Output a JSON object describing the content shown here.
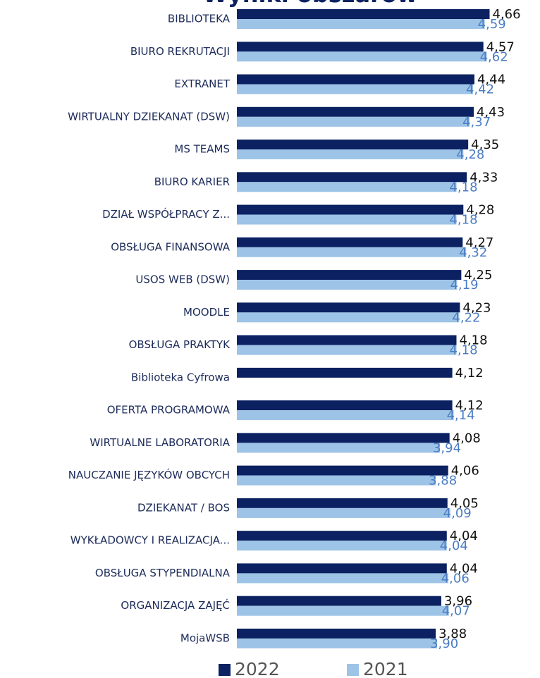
{
  "chart_data": {
    "type": "bar",
    "orientation": "horizontal",
    "title": "Wyniki obszarów",
    "categories": [
      "BIBLIOTEKA",
      "BIURO REKRUTACJI",
      "EXTRANET",
      "WIRTUALNY DZIEKANAT (DSW)",
      "MS TEAMS",
      "BIURO KARIER",
      "DZIAŁ WSPÓŁPRACY Z...",
      "OBSŁUGA FINANSOWA",
      "USOS WEB (DSW)",
      "MOODLE",
      "OBSŁUGA PRAKTYK",
      "Biblioteka Cyfrowa",
      "OFERTA PROGRAMOWA",
      "WIRTUALNE LABORATORIA",
      "NAUCZANIE JĘZYKÓW OBCYCH",
      "DZIEKANAT / BOS",
      "WYKŁADOWCY I REALIZACJA...",
      "OBSŁUGA STYPENDIALNA",
      "ORGANIZACJA ZAJĘĆ",
      "MojaWSB"
    ],
    "series": [
      {
        "name": "2022",
        "color": "#0b2161",
        "label_color": "#111111",
        "values": [
          4.66,
          4.57,
          4.44,
          4.43,
          4.35,
          4.33,
          4.28,
          4.27,
          4.25,
          4.23,
          4.18,
          4.12,
          4.12,
          4.08,
          4.06,
          4.05,
          4.04,
          4.04,
          3.96,
          3.88
        ],
        "value_labels": [
          "4,66",
          "4,57",
          "4,44",
          "4,43",
          "4,35",
          "4,33",
          "4,28",
          "4,27",
          "4,25",
          "4,23",
          "4,18",
          "4,12",
          "4,12",
          "4,08",
          "4,06",
          "4,05",
          "4,04",
          "4,04",
          "3,96",
          "3,88"
        ]
      },
      {
        "name": "2021",
        "color": "#9dc3e6",
        "label_color": "#4a7cc4",
        "values": [
          4.59,
          4.62,
          4.42,
          4.37,
          4.28,
          4.18,
          4.18,
          4.32,
          4.19,
          4.22,
          4.18,
          null,
          4.14,
          3.94,
          3.88,
          4.09,
          4.04,
          4.06,
          4.07,
          3.9
        ],
        "value_labels": [
          "4,59",
          "4,62",
          "4,42",
          "4,37",
          "4,28",
          "4,18",
          "4,18",
          "4,32",
          "4,19",
          "4,22",
          "4,18",
          null,
          "4,14",
          "3,94",
          "3,88",
          "4,09",
          "4,04",
          "4,06",
          "4,07",
          "3,90"
        ]
      }
    ],
    "xlim": [
      1,
      5.4
    ]
  }
}
